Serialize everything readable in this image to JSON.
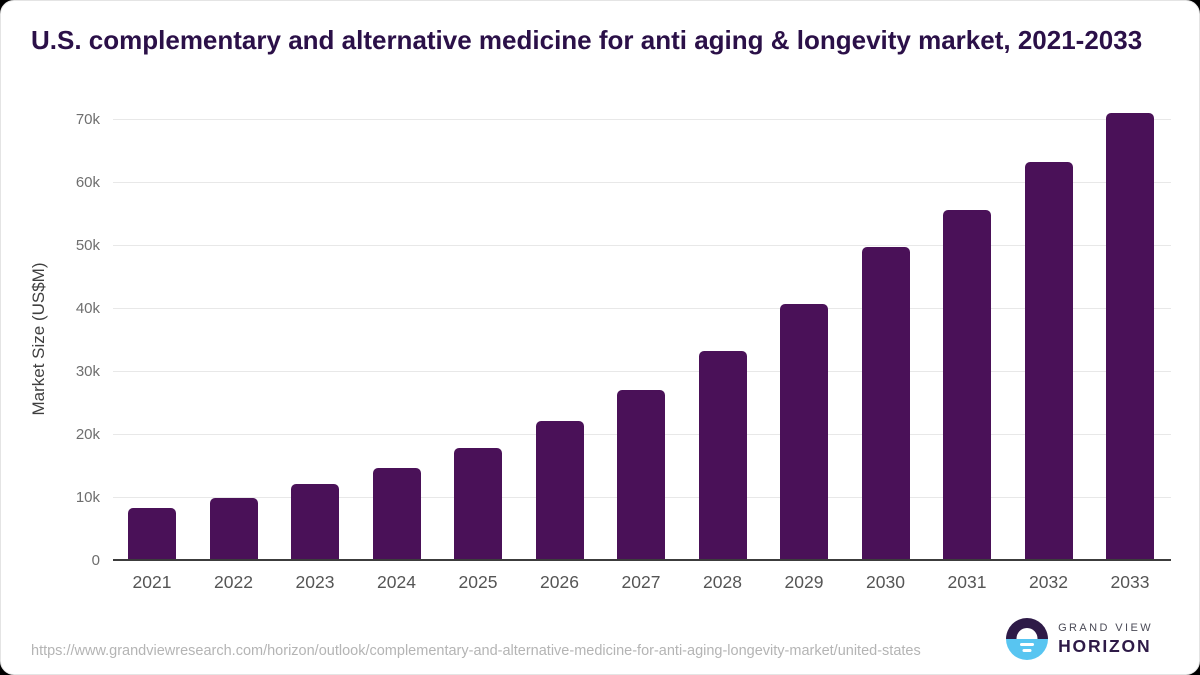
{
  "title": "U.S. complementary and alternative medicine for anti aging & longevity market, 2021-2033",
  "chart_data": {
    "type": "bar",
    "title": "U.S. complementary and alternative medicine for anti aging & longevity market, 2021-2033",
    "categories": [
      "2021",
      "2022",
      "2023",
      "2024",
      "2025",
      "2026",
      "2027",
      "2028",
      "2029",
      "2030",
      "2031",
      "2032",
      "2033"
    ],
    "values": [
      8200,
      9800,
      12100,
      14600,
      17800,
      22000,
      27000,
      33200,
      40600,
      49700,
      55600,
      63100,
      71000
    ],
    "xlabel": "",
    "ylabel": "Market Size (US$M)",
    "ylim": [
      0,
      70000
    ],
    "y_tick_values": [
      0,
      10000,
      20000,
      30000,
      40000,
      50000,
      60000,
      70000
    ],
    "y_tick_labels": [
      "0",
      "10k",
      "20k",
      "30k",
      "40k",
      "50k",
      "60k",
      "70k"
    ],
    "grid": true,
    "legend": "none",
    "bar_color": "#4A1158"
  },
  "footer": {
    "source_url": "https://www.grandviewresearch.com/horizon/outlook/complementary-and-alternative-medicine-for-anti-aging-longevity-market/united-states",
    "logo": {
      "brand_top": "GRAND VIEW",
      "brand_bottom": "HORIZON"
    }
  },
  "colors": {
    "bar": "#4A1158",
    "title": "#2B1048",
    "axis_line": "#3C3C3C",
    "gridline": "#E8E8E8",
    "y_tick_label": "#6E6E6E",
    "x_tick_label": "#555555",
    "y_axis_title": "#3F3F3F",
    "url_text": "#B4B4B4",
    "logo_dark": "#2E1A47",
    "logo_blue": "#58C5F1",
    "logo_gray": "#4B4B57"
  }
}
